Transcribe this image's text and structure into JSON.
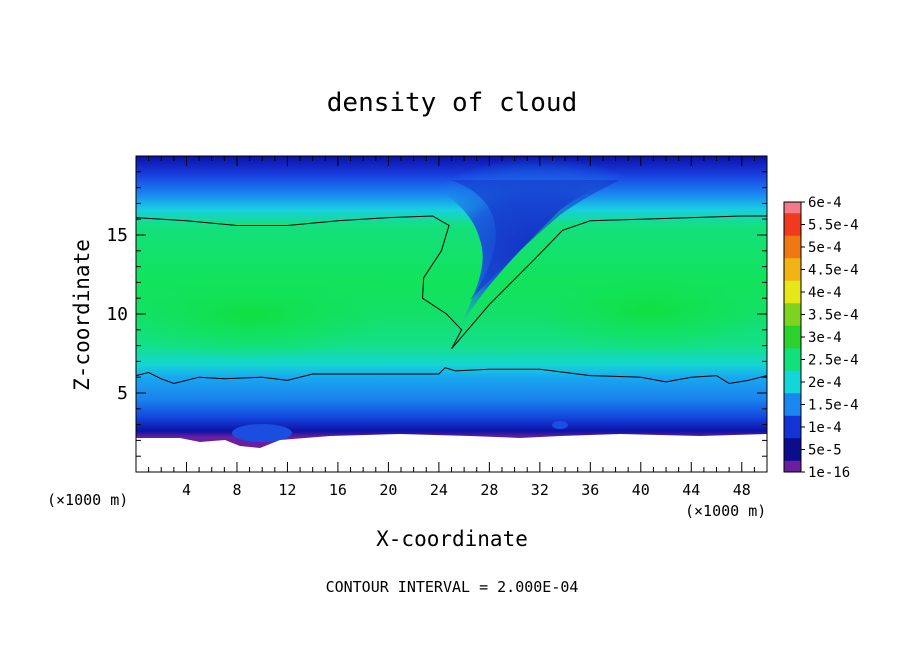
{
  "chart_data": {
    "type": "heatmap",
    "title": "density of cloud",
    "xlabel": "X-coordinate",
    "ylabel": "Z-coordinate",
    "x_unit": "(×1000 m)",
    "footer": "CONTOUR INTERVAL = 2.000E-04",
    "xlim": [
      0,
      50
    ],
    "ylim": [
      0,
      20
    ],
    "x_ticks": [
      4,
      8,
      12,
      16,
      20,
      24,
      28,
      32,
      36,
      40,
      44,
      48
    ],
    "y_ticks": [
      5,
      10,
      15
    ],
    "colorbar": {
      "labels": [
        "1e-16",
        "5e-5",
        "1e-4",
        "1.5e-4",
        "2e-4",
        "2.5e-4",
        "3e-4",
        "3.5e-4",
        "4e-4",
        "4.5e-4",
        "5e-4",
        "5.5e-4",
        "6e-4"
      ],
      "colors": [
        "#6a1fa0",
        "#0b0d8a",
        "#1333d6",
        "#1a86f0",
        "#15d6d6",
        "#12e07a",
        "#2bd22b",
        "#7ed321",
        "#e6e619",
        "#f0b414",
        "#f07814",
        "#f03a1e",
        "#f07a86"
      ]
    },
    "contour_level": 0.0002,
    "contour": [
      [
        0,
        16.1
      ],
      [
        4,
        15.9
      ],
      [
        8,
        15.6
      ],
      [
        12,
        15.6
      ],
      [
        16,
        15.9
      ],
      [
        20,
        16.1
      ],
      [
        23.5,
        16.2
      ],
      [
        24.8,
        15.6
      ],
      [
        24.2,
        14.0
      ],
      [
        22.8,
        12.3
      ],
      [
        22.7,
        11.0
      ],
      [
        24.6,
        10.0
      ],
      [
        25.8,
        9.0
      ],
      [
        25.0,
        7.8
      ],
      [
        28.0,
        10.6
      ],
      [
        31.5,
        13.4
      ],
      [
        33.8,
        15.3
      ],
      [
        36,
        15.9
      ],
      [
        40,
        16.0
      ],
      [
        44,
        16.1
      ],
      [
        48,
        16.2
      ],
      [
        50,
        16.2
      ]
    ],
    "contour_lower": [
      [
        0,
        6.1
      ],
      [
        1,
        6.3
      ],
      [
        2,
        5.9
      ],
      [
        3,
        5.6
      ],
      [
        5,
        6.0
      ],
      [
        7,
        5.9
      ],
      [
        10,
        6.0
      ],
      [
        12,
        5.8
      ],
      [
        14,
        6.2
      ],
      [
        18,
        6.2
      ],
      [
        22,
        6.2
      ],
      [
        24,
        6.2
      ],
      [
        24.5,
        6.6
      ],
      [
        25.3,
        6.4
      ],
      [
        28,
        6.5
      ],
      [
        32,
        6.5
      ],
      [
        36,
        6.1
      ],
      [
        40,
        6.0
      ],
      [
        42,
        5.7
      ],
      [
        44,
        6.0
      ],
      [
        46,
        6.1
      ],
      [
        47,
        5.6
      ],
      [
        48.5,
        5.8
      ],
      [
        50,
        6.1
      ]
    ]
  }
}
